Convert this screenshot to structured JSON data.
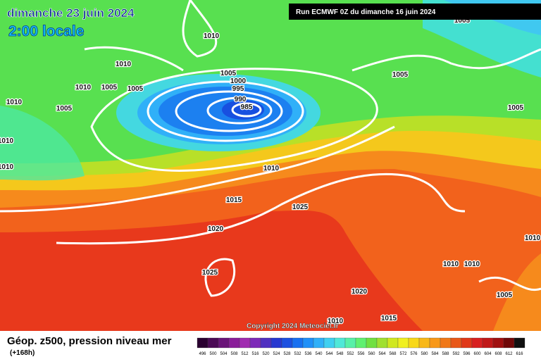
{
  "header": {
    "date": "dimanche 23 juin 2024",
    "time": "2:00 locale",
    "run": "Run ECMWF 0Z du dimanche 16 juin 2024"
  },
  "isobar_labels": [
    1010,
    1010,
    1010,
    1005,
    1005,
    1010,
    1005,
    1010,
    1010,
    1005,
    1000,
    995,
    990,
    985,
    1005,
    1005,
    1005,
    1010,
    1015,
    1025,
    1020,
    1025,
    1020,
    1010,
    1015,
    1010,
    1010,
    1010,
    1005
  ],
  "copyright": "Copyright 2024 Meteociel.fr",
  "legend": {
    "title": "Géop. z500, pression niveau mer",
    "subtitle": "(+168h)",
    "values": [
      496,
      500,
      504,
      508,
      512,
      516,
      520,
      524,
      528,
      532,
      536,
      540,
      544,
      548,
      552,
      556,
      560,
      564,
      568,
      572,
      576,
      580,
      584,
      588,
      592,
      596,
      600,
      604,
      608,
      612,
      616
    ],
    "colors": [
      "#2a0030",
      "#4b0a55",
      "#6a1478",
      "#8a1e99",
      "#a02cb0",
      "#7d2ab8",
      "#5030c0",
      "#2838d0",
      "#1c50e0",
      "#1870f0",
      "#2090f8",
      "#30b0f8",
      "#40d0f0",
      "#50e8d8",
      "#58f0a8",
      "#60f070",
      "#70e040",
      "#a0e030",
      "#d0e820",
      "#f0f020",
      "#f8d818",
      "#f8b818",
      "#f89818",
      "#f07818",
      "#e85818",
      "#e03818",
      "#d82020",
      "#c01818",
      "#a01010",
      "#700808",
      "#101010"
    ]
  }
}
